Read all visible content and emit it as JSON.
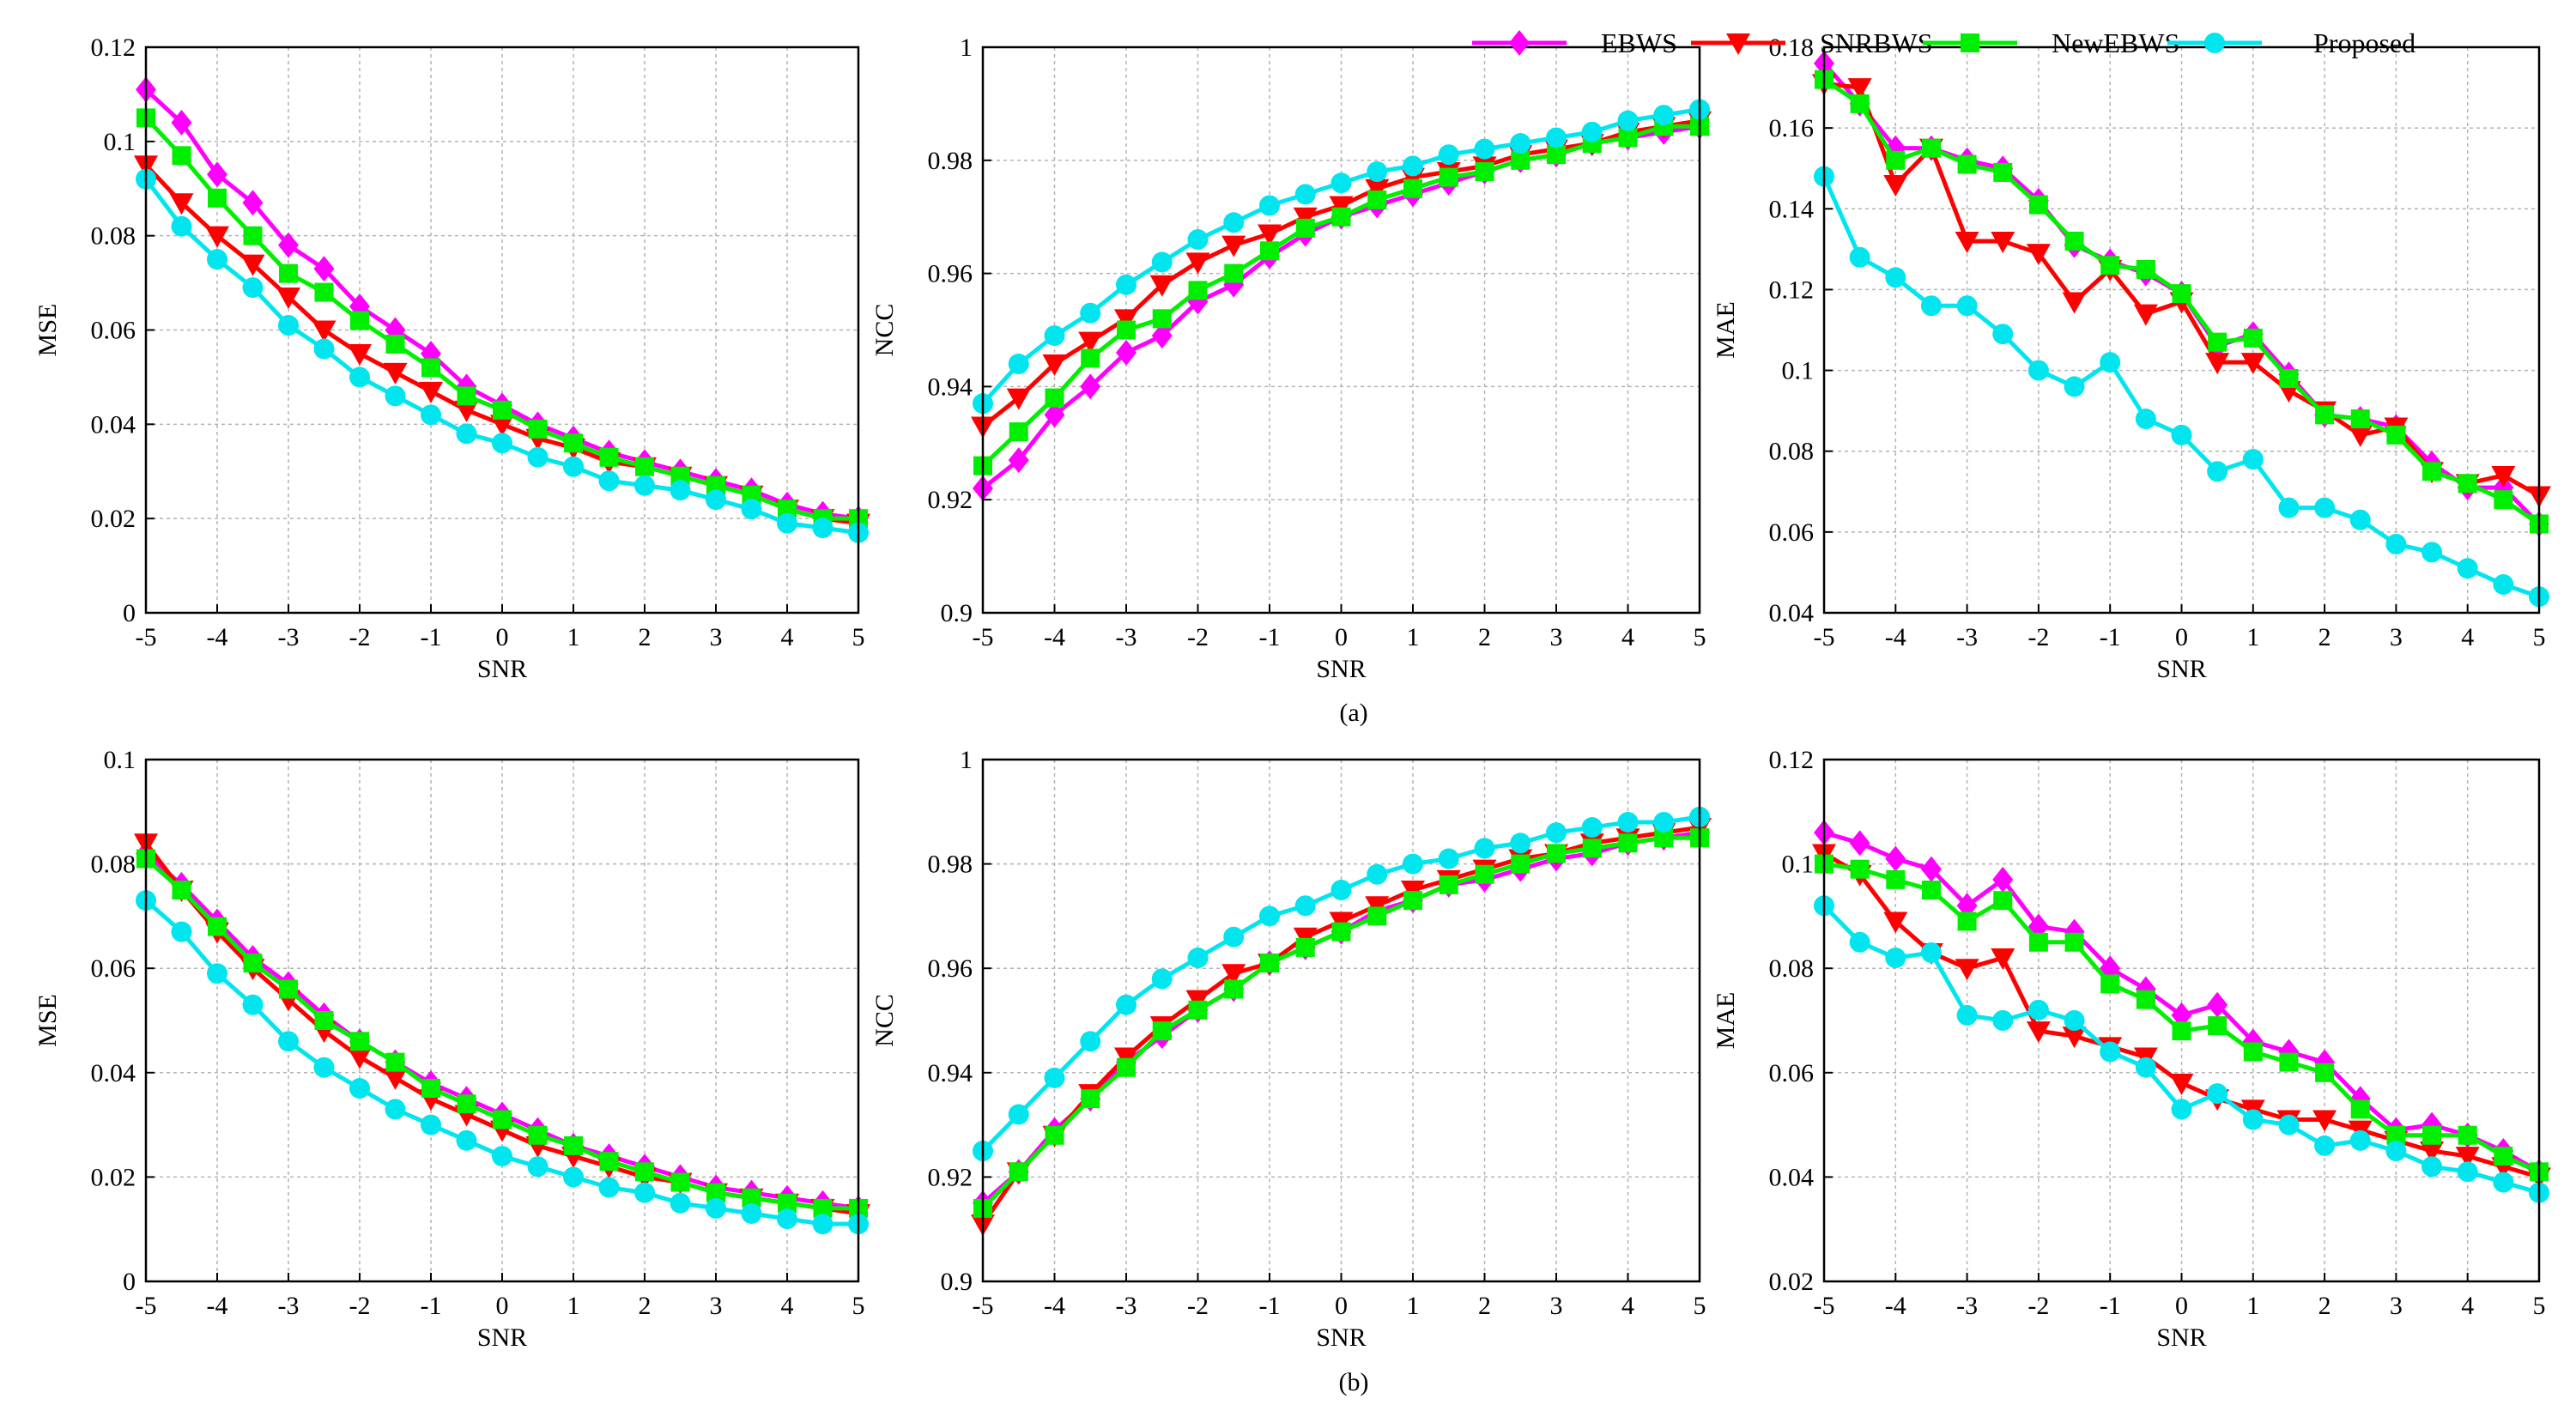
{
  "figure": {
    "captions": [
      "(a)",
      "(b)"
    ],
    "legend": [
      {
        "name": "EBWS",
        "color": "#ff00ff",
        "marker": "diamond"
      },
      {
        "name": "SNRBWS",
        "color": "#ff0000",
        "marker": "triangle-down"
      },
      {
        "name": "NewEBWS",
        "color": "#00ee00",
        "marker": "square"
      },
      {
        "name": "Proposed",
        "color": "#00e5ee",
        "marker": "circle"
      }
    ]
  },
  "chart_data": [
    {
      "type": "line",
      "row": "a",
      "col": 0,
      "xlabel": "SNR",
      "ylabel": "MSE",
      "xlim": [
        -5,
        5
      ],
      "ylim": [
        0,
        0.12
      ],
      "xticks": [
        "-5",
        "-4",
        "-3",
        "-2",
        "-1",
        "0",
        "1",
        "2",
        "3",
        "4",
        "5"
      ],
      "yticks": [
        "0",
        "0.02",
        "0.04",
        "0.06",
        "0.08",
        "0.1",
        "0.12"
      ],
      "x": [
        -5,
        -4.5,
        -4,
        -3.5,
        -3,
        -2.5,
        -2,
        -1.5,
        -1,
        -0.5,
        0,
        0.5,
        1,
        1.5,
        2,
        2.5,
        3,
        3.5,
        4,
        4.5,
        5
      ],
      "series": [
        {
          "name": "EBWS",
          "values": [
            0.111,
            0.104,
            0.093,
            0.087,
            0.078,
            0.073,
            0.065,
            0.06,
            0.055,
            0.048,
            0.044,
            0.04,
            0.037,
            0.034,
            0.032,
            0.03,
            0.028,
            0.026,
            0.023,
            0.021,
            0.02
          ]
        },
        {
          "name": "SNRBWS",
          "values": [
            0.095,
            0.087,
            0.08,
            0.074,
            0.067,
            0.06,
            0.055,
            0.051,
            0.047,
            0.043,
            0.04,
            0.037,
            0.035,
            0.032,
            0.031,
            0.029,
            0.027,
            0.025,
            0.022,
            0.02,
            0.019
          ]
        },
        {
          "name": "NewEBWS",
          "values": [
            0.105,
            0.097,
            0.088,
            0.08,
            0.072,
            0.068,
            0.062,
            0.057,
            0.052,
            0.046,
            0.043,
            0.039,
            0.036,
            0.033,
            0.031,
            0.029,
            0.027,
            0.025,
            0.022,
            0.02,
            0.02
          ]
        },
        {
          "name": "Proposed",
          "values": [
            0.092,
            0.082,
            0.075,
            0.069,
            0.061,
            0.056,
            0.05,
            0.046,
            0.042,
            0.038,
            0.036,
            0.033,
            0.031,
            0.028,
            0.027,
            0.026,
            0.024,
            0.022,
            0.019,
            0.018,
            0.017
          ]
        }
      ]
    },
    {
      "type": "line",
      "row": "a",
      "col": 1,
      "xlabel": "SNR",
      "ylabel": "NCC",
      "xlim": [
        -5,
        5
      ],
      "ylim": [
        0.9,
        1
      ],
      "xticks": [
        "-5",
        "-4",
        "-3",
        "-2",
        "-1",
        "0",
        "1",
        "2",
        "3",
        "4",
        "5"
      ],
      "yticks": [
        "0.9",
        "0.92",
        "0.94",
        "0.96",
        "0.98",
        "1"
      ],
      "x": [
        -5,
        -4.5,
        -4,
        -3.5,
        -3,
        -2.5,
        -2,
        -1.5,
        -1,
        -0.5,
        0,
        0.5,
        1,
        1.5,
        2,
        2.5,
        3,
        3.5,
        4,
        4.5,
        5
      ],
      "series": [
        {
          "name": "EBWS",
          "values": [
            0.922,
            0.927,
            0.935,
            0.94,
            0.946,
            0.949,
            0.955,
            0.958,
            0.963,
            0.967,
            0.97,
            0.972,
            0.974,
            0.976,
            0.978,
            0.98,
            0.981,
            0.983,
            0.984,
            0.985,
            0.986
          ]
        },
        {
          "name": "SNRBWS",
          "values": [
            0.933,
            0.938,
            0.944,
            0.948,
            0.952,
            0.958,
            0.962,
            0.965,
            0.967,
            0.97,
            0.972,
            0.975,
            0.977,
            0.978,
            0.979,
            0.981,
            0.982,
            0.983,
            0.985,
            0.986,
            0.987
          ]
        },
        {
          "name": "NewEBWS",
          "values": [
            0.926,
            0.932,
            0.938,
            0.945,
            0.95,
            0.952,
            0.957,
            0.96,
            0.964,
            0.968,
            0.97,
            0.973,
            0.975,
            0.977,
            0.978,
            0.98,
            0.981,
            0.983,
            0.984,
            0.986,
            0.986
          ]
        },
        {
          "name": "Proposed",
          "values": [
            0.937,
            0.944,
            0.949,
            0.953,
            0.958,
            0.962,
            0.966,
            0.969,
            0.972,
            0.974,
            0.976,
            0.978,
            0.979,
            0.981,
            0.982,
            0.983,
            0.984,
            0.985,
            0.987,
            0.988,
            0.989
          ]
        }
      ]
    },
    {
      "type": "line",
      "row": "a",
      "col": 2,
      "xlabel": "SNR",
      "ylabel": "MAE",
      "xlim": [
        -5,
        5
      ],
      "ylim": [
        0.04,
        0.18
      ],
      "xticks": [
        "-5",
        "-4",
        "-3",
        "-2",
        "-1",
        "0",
        "1",
        "2",
        "3",
        "4",
        "5"
      ],
      "yticks": [
        "0.04",
        "0.06",
        "0.08",
        "0.1",
        "0.12",
        "0.14",
        "0.16",
        "0.18"
      ],
      "x": [
        -5,
        -4.5,
        -4,
        -3.5,
        -3,
        -2.5,
        -2,
        -1.5,
        -1,
        -0.5,
        0,
        0.5,
        1,
        1.5,
        2,
        2.5,
        3,
        3.5,
        4,
        4.5,
        5
      ],
      "series": [
        {
          "name": "EBWS",
          "values": [
            0.176,
            0.166,
            0.155,
            0.155,
            0.152,
            0.15,
            0.142,
            0.131,
            0.127,
            0.124,
            0.119,
            0.106,
            0.109,
            0.099,
            0.089,
            0.088,
            0.086,
            0.077,
            0.071,
            0.071,
            0.062
          ]
        },
        {
          "name": "SNRBWS",
          "values": [
            0.171,
            0.17,
            0.146,
            0.155,
            0.132,
            0.132,
            0.129,
            0.117,
            0.125,
            0.114,
            0.117,
            0.102,
            0.102,
            0.095,
            0.09,
            0.084,
            0.086,
            0.075,
            0.072,
            0.074,
            0.069
          ]
        },
        {
          "name": "NewEBWS",
          "values": [
            0.172,
            0.166,
            0.152,
            0.155,
            0.151,
            0.149,
            0.141,
            0.132,
            0.126,
            0.125,
            0.119,
            0.107,
            0.108,
            0.098,
            0.089,
            0.088,
            0.084,
            0.075,
            0.072,
            0.068,
            0.062
          ]
        },
        {
          "name": "Proposed",
          "values": [
            0.148,
            0.128,
            0.123,
            0.116,
            0.116,
            0.109,
            0.1,
            0.096,
            0.102,
            0.088,
            0.084,
            0.075,
            0.078,
            0.066,
            0.066,
            0.063,
            0.057,
            0.055,
            0.051,
            0.047,
            0.044
          ]
        }
      ]
    },
    {
      "type": "line",
      "row": "b",
      "col": 0,
      "xlabel": "SNR",
      "ylabel": "MSE",
      "xlim": [
        -5,
        5
      ],
      "ylim": [
        0,
        0.1
      ],
      "xticks": [
        "-5",
        "-4",
        "-3",
        "-2",
        "-1",
        "0",
        "1",
        "2",
        "3",
        "4",
        "5"
      ],
      "yticks": [
        "0",
        "0.02",
        "0.04",
        "0.06",
        "0.08",
        "0.1"
      ],
      "x": [
        -5,
        -4.5,
        -4,
        -3.5,
        -3,
        -2.5,
        -2,
        -1.5,
        -1,
        -0.5,
        0,
        0.5,
        1,
        1.5,
        2,
        2.5,
        3,
        3.5,
        4,
        4.5,
        5
      ],
      "series": [
        {
          "name": "EBWS",
          "values": [
            0.082,
            0.076,
            0.069,
            0.062,
            0.057,
            0.051,
            0.046,
            0.042,
            0.038,
            0.035,
            0.032,
            0.029,
            0.026,
            0.024,
            0.022,
            0.02,
            0.018,
            0.017,
            0.016,
            0.015,
            0.014
          ]
        },
        {
          "name": "SNRBWS",
          "values": [
            0.084,
            0.075,
            0.067,
            0.06,
            0.054,
            0.048,
            0.043,
            0.039,
            0.035,
            0.032,
            0.029,
            0.026,
            0.024,
            0.022,
            0.02,
            0.019,
            0.017,
            0.016,
            0.015,
            0.014,
            0.013
          ]
        },
        {
          "name": "NewEBWS",
          "values": [
            0.081,
            0.075,
            0.068,
            0.061,
            0.056,
            0.05,
            0.046,
            0.042,
            0.037,
            0.034,
            0.031,
            0.028,
            0.026,
            0.023,
            0.021,
            0.019,
            0.017,
            0.016,
            0.015,
            0.014,
            0.014
          ]
        },
        {
          "name": "Proposed",
          "values": [
            0.073,
            0.067,
            0.059,
            0.053,
            0.046,
            0.041,
            0.037,
            0.033,
            0.03,
            0.027,
            0.024,
            0.022,
            0.02,
            0.018,
            0.017,
            0.015,
            0.014,
            0.013,
            0.012,
            0.011,
            0.011
          ]
        }
      ]
    },
    {
      "type": "line",
      "row": "b",
      "col": 1,
      "xlabel": "SNR",
      "ylabel": "NCC",
      "xlim": [
        -5,
        5
      ],
      "ylim": [
        0.9,
        1
      ],
      "xticks": [
        "-5",
        "-4",
        "-3",
        "-2",
        "-1",
        "0",
        "1",
        "2",
        "3",
        "4",
        "5"
      ],
      "yticks": [
        "0.9",
        "0.92",
        "0.94",
        "0.96",
        "0.98",
        "1"
      ],
      "x": [
        -5,
        -4.5,
        -4,
        -3.5,
        -3,
        -2.5,
        -2,
        -1.5,
        -1,
        -0.5,
        0,
        0.5,
        1,
        1.5,
        2,
        2.5,
        3,
        3.5,
        4,
        4.5,
        5
      ],
      "series": [
        {
          "name": "EBWS",
          "values": [
            0.915,
            0.921,
            0.929,
            0.935,
            0.942,
            0.947,
            0.952,
            0.956,
            0.961,
            0.964,
            0.967,
            0.971,
            0.973,
            0.976,
            0.977,
            0.979,
            0.981,
            0.982,
            0.984,
            0.985,
            0.986
          ]
        },
        {
          "name": "SNRBWS",
          "values": [
            0.911,
            0.921,
            0.928,
            0.936,
            0.943,
            0.949,
            0.954,
            0.959,
            0.961,
            0.966,
            0.969,
            0.972,
            0.975,
            0.977,
            0.979,
            0.981,
            0.982,
            0.984,
            0.985,
            0.986,
            0.987
          ]
        },
        {
          "name": "NewEBWS",
          "values": [
            0.914,
            0.921,
            0.928,
            0.935,
            0.941,
            0.948,
            0.952,
            0.956,
            0.961,
            0.964,
            0.967,
            0.97,
            0.973,
            0.976,
            0.978,
            0.98,
            0.982,
            0.983,
            0.984,
            0.985,
            0.985
          ]
        },
        {
          "name": "Proposed",
          "values": [
            0.925,
            0.932,
            0.939,
            0.946,
            0.953,
            0.958,
            0.962,
            0.966,
            0.97,
            0.972,
            0.975,
            0.978,
            0.98,
            0.981,
            0.983,
            0.984,
            0.986,
            0.987,
            0.988,
            0.988,
            0.989
          ]
        }
      ]
    },
    {
      "type": "line",
      "row": "b",
      "col": 2,
      "xlabel": "SNR",
      "ylabel": "MAE",
      "xlim": [
        -5,
        5
      ],
      "ylim": [
        0.02,
        0.12
      ],
      "xticks": [
        "-5",
        "-4",
        "-3",
        "-2",
        "-1",
        "0",
        "1",
        "2",
        "3",
        "4",
        "5"
      ],
      "yticks": [
        "0.02",
        "0.04",
        "0.06",
        "0.08",
        "0.1",
        "0.12"
      ],
      "x": [
        -5,
        -4.5,
        -4,
        -3.5,
        -3,
        -2.5,
        -2,
        -1.5,
        -1,
        -0.5,
        0,
        0.5,
        1,
        1.5,
        2,
        2.5,
        3,
        3.5,
        4,
        4.5,
        5
      ],
      "series": [
        {
          "name": "EBWS",
          "values": [
            0.106,
            0.104,
            0.101,
            0.099,
            0.092,
            0.097,
            0.088,
            0.087,
            0.08,
            0.076,
            0.071,
            0.073,
            0.066,
            0.064,
            0.062,
            0.055,
            0.049,
            0.05,
            0.048,
            0.045,
            0.041
          ]
        },
        {
          "name": "SNRBWS",
          "values": [
            0.102,
            0.098,
            0.089,
            0.083,
            0.08,
            0.082,
            0.068,
            0.067,
            0.065,
            0.063,
            0.058,
            0.055,
            0.053,
            0.051,
            0.051,
            0.049,
            0.047,
            0.045,
            0.044,
            0.042,
            0.04
          ]
        },
        {
          "name": "NewEBWS",
          "values": [
            0.1,
            0.099,
            0.097,
            0.095,
            0.089,
            0.093,
            0.085,
            0.085,
            0.077,
            0.074,
            0.068,
            0.069,
            0.064,
            0.062,
            0.06,
            0.053,
            0.048,
            0.048,
            0.048,
            0.044,
            0.041
          ]
        },
        {
          "name": "Proposed",
          "values": [
            0.092,
            0.085,
            0.082,
            0.083,
            0.071,
            0.07,
            0.072,
            0.07,
            0.064,
            0.061,
            0.053,
            0.056,
            0.051,
            0.05,
            0.046,
            0.047,
            0.045,
            0.042,
            0.041,
            0.039,
            0.037
          ]
        }
      ]
    }
  ]
}
